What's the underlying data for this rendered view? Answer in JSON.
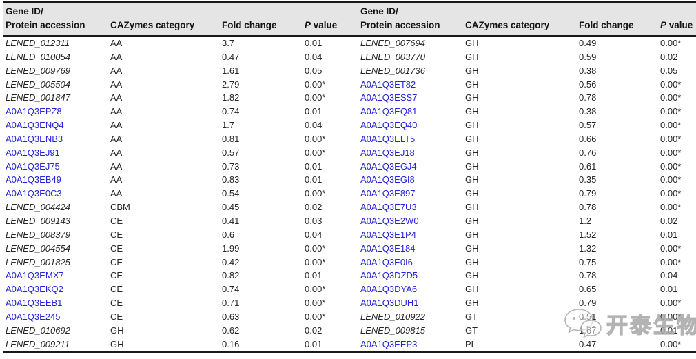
{
  "colors": {
    "header_bg": "#e5e5e5",
    "rule_dark": "#191919",
    "link_blue": "#2323d9",
    "body_text": "#262626",
    "watermark_gray": "#a9a9a9"
  },
  "table": {
    "header": {
      "gene_line1": "Gene ID/",
      "gene_line2": "Protein accession",
      "cazymes": "CAZymes category",
      "fold": "Fold change",
      "p_italic": "P",
      "p_rest": " value"
    },
    "left_rows": [
      {
        "id": "LENED_012311",
        "style": "italic",
        "category": "AA",
        "fold": "3.7",
        "p": "0.01"
      },
      {
        "id": "LENED_010054",
        "style": "italic",
        "category": "AA",
        "fold": "0.47",
        "p": "0.04"
      },
      {
        "id": "LENED_009769",
        "style": "italic",
        "category": "AA",
        "fold": "1.61",
        "p": "0.05"
      },
      {
        "id": "LENED_005504",
        "style": "italic",
        "category": "AA",
        "fold": "2.79",
        "p": "0.00*"
      },
      {
        "id": "LENED_001847",
        "style": "italic",
        "category": "AA",
        "fold": "1.82",
        "p": "0.00*"
      },
      {
        "id": "A0A1Q3EPZ8",
        "style": "link",
        "category": "AA",
        "fold": "0.74",
        "p": "0.01"
      },
      {
        "id": "A0A1Q3ENQ4",
        "style": "link",
        "category": "AA",
        "fold": "1.7",
        "p": "0.04"
      },
      {
        "id": "A0A1Q3ENB3",
        "style": "link",
        "category": "AA",
        "fold": "0.81",
        "p": "0.00*"
      },
      {
        "id": "A0A1Q3EJ91",
        "style": "link",
        "category": "AA",
        "fold": "0.57",
        "p": "0.00*"
      },
      {
        "id": "A0A1Q3EJ75",
        "style": "link",
        "category": "AA",
        "fold": "0.73",
        "p": "0.01"
      },
      {
        "id": "A0A1Q3EB49",
        "style": "link",
        "category": "AA",
        "fold": "0.83",
        "p": "0.01"
      },
      {
        "id": "A0A1Q3E0C3",
        "style": "link",
        "category": "AA",
        "fold": "0.54",
        "p": "0.00*"
      },
      {
        "id": "LENED_004424",
        "style": "italic",
        "category": "CBM",
        "fold": "0.45",
        "p": "0.02"
      },
      {
        "id": "LENED_009143",
        "style": "italic",
        "category": "CE",
        "fold": "0.41",
        "p": "0.03"
      },
      {
        "id": "LENED_008379",
        "style": "italic",
        "category": "CE",
        "fold": "0.6",
        "p": "0.04"
      },
      {
        "id": "LENED_004554",
        "style": "italic",
        "category": "CE",
        "fold": "1.99",
        "p": "0.00*"
      },
      {
        "id": "LENED_001825",
        "style": "italic",
        "category": "CE",
        "fold": "0.42",
        "p": "0.00*"
      },
      {
        "id": "A0A1Q3EMX7",
        "style": "link",
        "category": "CE",
        "fold": "0.82",
        "p": "0.01"
      },
      {
        "id": "A0A1Q3EKQ2",
        "style": "link",
        "category": "CE",
        "fold": "0.74",
        "p": "0.00*"
      },
      {
        "id": "A0A1Q3EEB1",
        "style": "link",
        "category": "CE",
        "fold": "0.71",
        "p": "0.00*"
      },
      {
        "id": "A0A1Q3E245",
        "style": "link",
        "category": "CE",
        "fold": "0.63",
        "p": "0.00*"
      },
      {
        "id": "LENED_010692",
        "style": "italic",
        "category": "GH",
        "fold": "0.62",
        "p": "0.02"
      },
      {
        "id": "LENED_009211",
        "style": "italic",
        "category": "GH",
        "fold": "0.16",
        "p": "0.01"
      }
    ],
    "right_rows": [
      {
        "id": "LENED_007694",
        "style": "italic",
        "category": "GH",
        "fold": "0.49",
        "p": "0.00*"
      },
      {
        "id": "LENED_003770",
        "style": "italic",
        "category": "GH",
        "fold": "0.59",
        "p": "0.02"
      },
      {
        "id": "LENED_001736",
        "style": "italic",
        "category": "GH",
        "fold": "0.38",
        "p": "0.05"
      },
      {
        "id": "A0A1Q3ET82",
        "style": "link",
        "category": "GH",
        "fold": "0.56",
        "p": "0.00*"
      },
      {
        "id": "A0A1Q3ESS7",
        "style": "link",
        "category": "GH",
        "fold": "0.78",
        "p": "0.00*"
      },
      {
        "id": "A0A1Q3EQ81",
        "style": "link",
        "category": "GH",
        "fold": "0.38",
        "p": "0.00*"
      },
      {
        "id": "A0A1Q3EQ40",
        "style": "link",
        "category": "GH",
        "fold": "0.57",
        "p": "0.00*"
      },
      {
        "id": "A0A1Q3ELT5",
        "style": "link",
        "category": "GH",
        "fold": "0.66",
        "p": "0.00*"
      },
      {
        "id": "A0A1Q3EJ18",
        "style": "link",
        "category": "GH",
        "fold": "0.76",
        "p": "0.00*"
      },
      {
        "id": "A0A1Q3EGJ4",
        "style": "link",
        "category": "GH",
        "fold": "0.61",
        "p": "0.00*"
      },
      {
        "id": "A0A1Q3EGI8",
        "style": "link",
        "category": "GH",
        "fold": "0.35",
        "p": "0.00*"
      },
      {
        "id": "A0A1Q3E897",
        "style": "link",
        "category": "GH",
        "fold": "0.79",
        "p": "0.00*"
      },
      {
        "id": "A0A1Q3E7U3",
        "style": "link",
        "category": "GH",
        "fold": "0.78",
        "p": "0.00*"
      },
      {
        "id": "A0A1Q3E2W0",
        "style": "link",
        "category": "GH",
        "fold": "1.2",
        "p": "0.02"
      },
      {
        "id": "A0A1Q3E1P4",
        "style": "link",
        "category": "GH",
        "fold": "1.52",
        "p": "0.01"
      },
      {
        "id": "A0A1Q3E184",
        "style": "link",
        "category": "GH",
        "fold": "1.32",
        "p": "0.00*"
      },
      {
        "id": "A0A1Q3E0I6",
        "style": "link",
        "category": "GH",
        "fold": "0.75",
        "p": "0.00*"
      },
      {
        "id": "A0A1Q3DZD5",
        "style": "link",
        "category": "GH",
        "fold": "0.78",
        "p": "0.04"
      },
      {
        "id": "A0A1Q3DYA6",
        "style": "link",
        "category": "GH",
        "fold": "0.65",
        "p": "0.01"
      },
      {
        "id": "A0A1Q3DUH1",
        "style": "link",
        "category": "GH",
        "fold": "0.79",
        "p": "0.00*"
      },
      {
        "id": "LENED_010922",
        "style": "italic",
        "category": "GT",
        "fold": "0.51",
        "p": "0.00*"
      },
      {
        "id": "LENED_009815",
        "style": "italic",
        "category": "GT",
        "fold": "1.67",
        "p": "0.01"
      },
      {
        "id": "A0A1Q3EEP3",
        "style": "link",
        "category": "PL",
        "fold": "0.47",
        "p": "0.00*"
      }
    ]
  },
  "watermark": {
    "text": "开泰生物",
    "icon": "wechat-chat-bubbles-icon"
  }
}
